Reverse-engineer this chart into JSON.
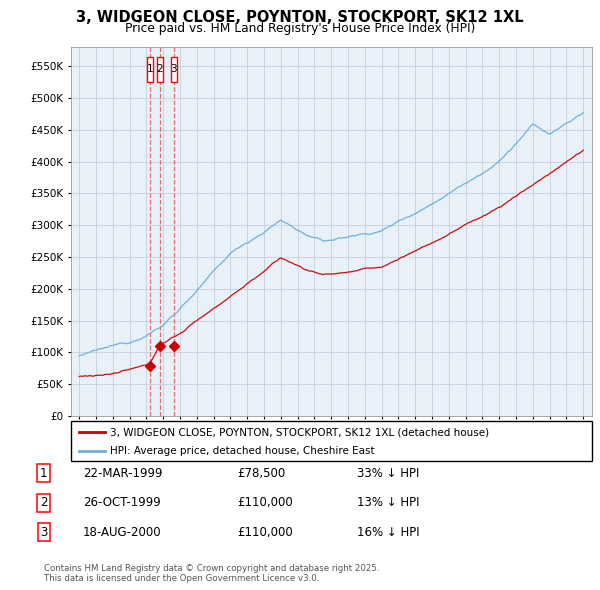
{
  "title": "3, WIDGEON CLOSE, POYNTON, STOCKPORT, SK12 1XL",
  "subtitle": "Price paid vs. HM Land Registry's House Price Index (HPI)",
  "legend_line1": "3, WIDGEON CLOSE, POYNTON, STOCKPORT, SK12 1XL (detached house)",
  "legend_line2": "HPI: Average price, detached house, Cheshire East",
  "footer": "Contains HM Land Registry data © Crown copyright and database right 2025.\nThis data is licensed under the Open Government Licence v3.0.",
  "transactions": [
    {
      "num": 1,
      "date": "22-MAR-1999",
      "price": "£78,500",
      "rel": "33% ↓ HPI"
    },
    {
      "num": 2,
      "date": "26-OCT-1999",
      "price": "£110,000",
      "rel": "13% ↓ HPI"
    },
    {
      "num": 3,
      "date": "18-AUG-2000",
      "price": "£110,000",
      "rel": "16% ↓ HPI"
    }
  ],
  "transaction_years": [
    1999.21,
    1999.81,
    2000.63
  ],
  "transaction_prices": [
    78500,
    110000,
    110000
  ],
  "hpi_color": "#6baed6",
  "price_color": "#cc0000",
  "marker_color": "#cc0000",
  "chart_bg": "#e8f0f8",
  "ylim": [
    0,
    580000
  ],
  "yticks": [
    0,
    50000,
    100000,
    150000,
    200000,
    250000,
    300000,
    350000,
    400000,
    450000,
    500000,
    550000
  ],
  "background_color": "#ffffff",
  "grid_color": "#c0c8d8"
}
